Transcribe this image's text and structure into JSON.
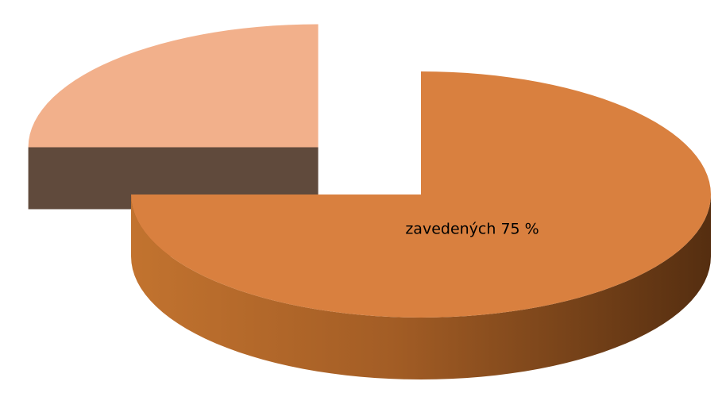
{
  "chart_data": {
    "type": "pie",
    "values": [
      75,
      25
    ],
    "value_labels": [
      "zavedených 75 %",
      null
    ],
    "colors": [
      "#d9803f",
      "#f2b08b"
    ],
    "side_colors": [
      "#7a4418",
      "#604a3c"
    ]
  }
}
